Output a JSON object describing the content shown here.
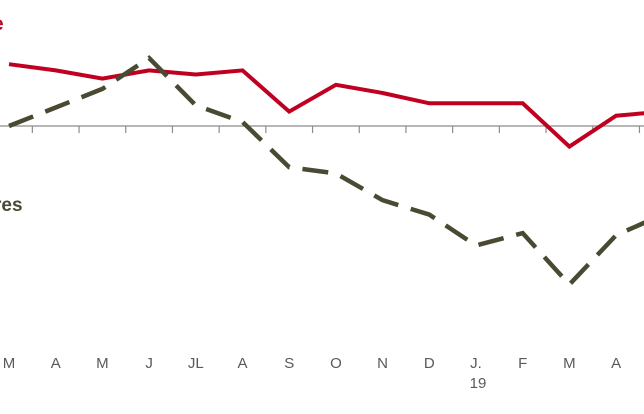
{
  "chart_data": {
    "type": "line",
    "categories": [
      "M",
      "A",
      "M",
      "J",
      "JL",
      "A",
      "S",
      "O",
      "N",
      "D",
      "J.",
      "F",
      "M",
      "A",
      ""
    ],
    "x_sublabels": [
      "",
      "",
      "",
      "",
      "",
      "",
      "",
      "",
      "",
      "",
      "19",
      "",
      "",
      "",
      ""
    ],
    "ylim": [
      -7,
      3
    ],
    "zero_line": 0,
    "grid": false,
    "series": [
      {
        "name": "e",
        "color": "#c00020",
        "style": "solid",
        "values": [
          3.0,
          2.7,
          2.3,
          2.7,
          2.5,
          2.7,
          0.7,
          2.0,
          1.6,
          1.1,
          1.1,
          1.1,
          -1.0,
          0.5,
          0.7
        ]
      },
      {
        "name": "res",
        "color": "#4a4a33",
        "style": "dashed",
        "values": [
          0,
          0.9,
          1.8,
          3.3,
          1.0,
          0.2,
          -2.0,
          -2.3,
          -3.6,
          -4.3,
          -5.8,
          -5.2,
          -7.7,
          -5.3,
          -4.3
        ]
      }
    ]
  }
}
